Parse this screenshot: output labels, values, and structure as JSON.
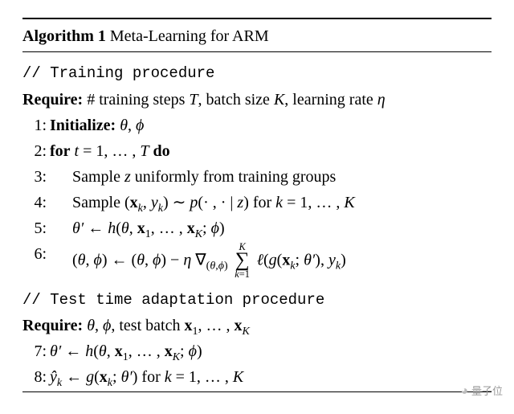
{
  "algo": {
    "number": "Algorithm 1",
    "title": "Meta-Learning for ARM",
    "title_font": "Times New Roman",
    "title_fontsize_pt": 20,
    "rule_color": "#000000",
    "background_color": "#ffffff",
    "text_color": "#000000",
    "comment_font": "Courier New",
    "comment_fontsize_pt": 19,
    "sections": {
      "train_comment": "// Training procedure",
      "train_require_label": "Require:",
      "train_require_text": " # training steps T, batch size K, learning rate η",
      "test_comment": "// Test time adaptation procedure",
      "test_require_label": "Require:",
      "test_require_text": " θ, ϕ, test batch 𝐱₁, … , 𝐱_K"
    },
    "steps": [
      {
        "n": "1:",
        "kind": "bold",
        "html": "Initialize: θ, ϕ"
      },
      {
        "n": "2:",
        "kind": "bold",
        "html": "for t = 1, … , T do"
      },
      {
        "n": "3:",
        "kind": "indent",
        "html": "Sample z uniformly from training groups"
      },
      {
        "n": "4:",
        "kind": "indent",
        "html": "Sample (𝐱_k, y_k) ∼ p(·, · | z) for k = 1, … , K"
      },
      {
        "n": "5:",
        "kind": "indent",
        "html": "θ′ ← h(θ, 𝐱₁, … , 𝐱_K; ϕ)"
      },
      {
        "n": "6:",
        "kind": "indent",
        "html": "(θ, ϕ) ← (θ, ϕ) − η ∇_(θ,ϕ) Σ_{k=1}^{K} ℓ(g(𝐱_k; θ′), y_k)"
      }
    ],
    "test_steps": [
      {
        "n": "7:",
        "html": "θ′ ← h(θ, 𝐱₁, … , 𝐱_K; ϕ)"
      },
      {
        "n": "8:",
        "html": "ŷ_k ← g(𝐱_k; θ′) for k = 1, … , K"
      }
    ]
  },
  "watermark": {
    "text": "量子位",
    "icon_glyph": "◐",
    "color": "#9a9a9a",
    "fontsize_pt": 13
  }
}
